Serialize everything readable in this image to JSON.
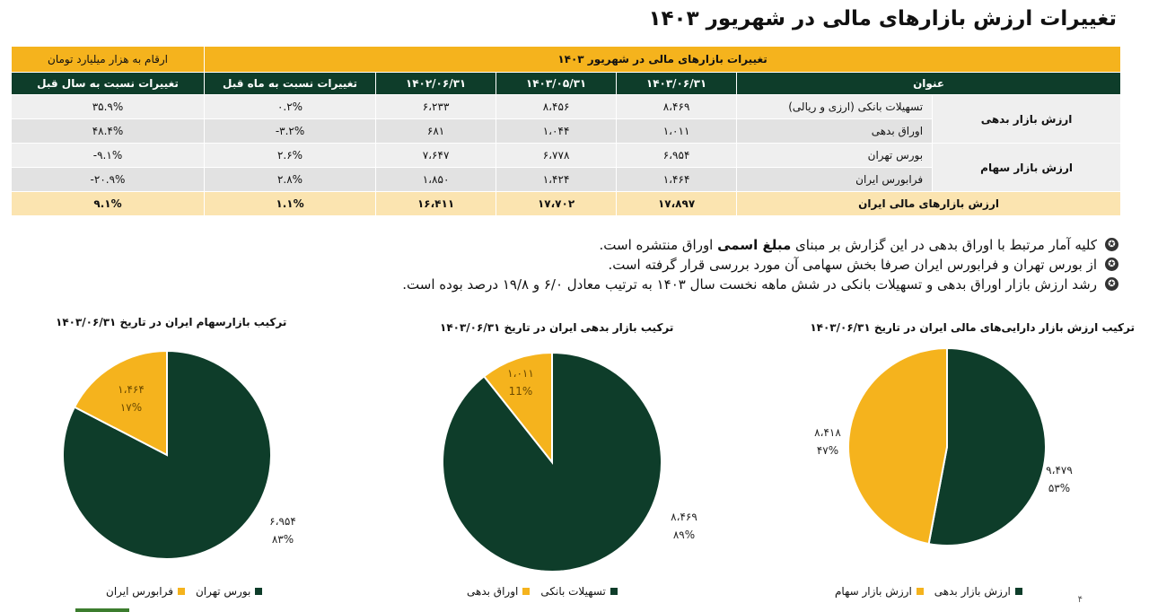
{
  "title": "تغییرات ارزش بازارهای مالی در شهریور ۱۴۰۳",
  "table": {
    "band_title": "تغییرات بازارهای مالی در شهریور ۱۴۰۳",
    "unit_note": "ارقام به هزار میلیارد تومان",
    "headers": [
      "عنوان",
      "۱۴۰۳/۰۶/۳۱",
      "۱۴۰۳/۰۵/۳۱",
      "۱۴۰۲/۰۶/۳۱",
      "تغییرات نسبت به ماه قبل",
      "تغییرات  نسبت به سال قبل"
    ],
    "groups": [
      {
        "label": "ارزش بازار بدهی",
        "rows": [
          {
            "name": "تسهیلات بانکی (ارزی و ریالی)",
            "cells": [
              "۸،۴۶۹",
              "۸،۴۵۶",
              "۶،۲۳۳",
              "۰.۲%",
              "۳۵.۹%"
            ]
          },
          {
            "name": "اوراق بدهی",
            "cells": [
              "۱،۰۱۱",
              "۱،۰۴۴",
              "۶۸۱",
              "-۳.۲%",
              "۴۸.۴%"
            ]
          }
        ]
      },
      {
        "label": "ارزش بازار سهام",
        "rows": [
          {
            "name": "بورس تهران",
            "cells": [
              "۶،۹۵۴",
              "۶،۷۷۸",
              "۷،۶۴۷",
              "۲.۶%",
              "-۹.۱%"
            ]
          },
          {
            "name": "فرابورس ایران",
            "cells": [
              "۱،۴۶۴",
              "۱،۴۲۴",
              "۱،۸۵۰",
              "۲.۸%",
              "-۲۰.۹%"
            ]
          }
        ]
      }
    ],
    "total": {
      "name": "ارزش بازارهای مالی ایران",
      "cells": [
        "۱۷،۸۹۷",
        "۱۷،۷۰۲",
        "۱۶،۴۱۱",
        "۱.۱%",
        "۹.۱%"
      ]
    }
  },
  "bullets": [
    {
      "before": "کلیه آمار مرتبط با اوراق بدهی در این گزارش بر مبنای ",
      "bold": "مبلغ اسمی",
      "after": " اوراق منتشره است."
    },
    {
      "before": "از بورس تهران و فرابورس ایران صرفا بخش سهامی آن مورد بررسی قرار گرفته است.",
      "bold": "",
      "after": ""
    },
    {
      "before": "رشد ارزش بازار اوراق بدهی و تسهیلات بانکی در شش ماهه نخست سال ۱۴۰۳ به ترتیب معادل ۶/۰ و ۱۹/۸ درصد بوده است.",
      "bold": "",
      "after": ""
    }
  ],
  "colors": {
    "dark_green": "#0e3d2a",
    "gold": "#f5b31d"
  },
  "chart_data": [
    {
      "type": "pie",
      "title": "ترکیب ارزش بازار دارایی‌های مالی ایران در تاریخ ۱۴۰۳/۰۶/۳۱",
      "series": [
        {
          "name": "ارزش بازار بدهی",
          "value": 9479,
          "label": "۹،۴۷۹",
          "percent": "۵۳%",
          "color": "#0e3d2a"
        },
        {
          "name": "ارزش بازار سهام",
          "value": 8418,
          "label": "۸،۴۱۸",
          "percent": "۴۷%",
          "color": "#f5b31d"
        }
      ]
    },
    {
      "type": "pie",
      "title": "ترکیب بازار بدهی ایران در تاریخ ۱۴۰۳/۰۶/۳۱",
      "series": [
        {
          "name": "تسهیلات بانکی",
          "value": 8469,
          "label": "۸،۴۶۹",
          "percent": "۸۹%",
          "color": "#0e3d2a"
        },
        {
          "name": "اوراق بدهی",
          "value": 1011,
          "label": "۱،۰۱۱",
          "percent": "11%",
          "color": "#f5b31d"
        }
      ]
    },
    {
      "type": "pie",
      "title": "ترکیب بازارسهام ایران در تاریخ  ۱۴۰۳/۰۶/۳۱",
      "series": [
        {
          "name": "بورس تهران",
          "value": 6954,
          "label": "۶،۹۵۴",
          "percent": "۸۳%",
          "color": "#0e3d2a"
        },
        {
          "name": "فرابورس ایران",
          "value": 1464,
          "label": "۱،۴۶۴",
          "percent": "۱۷%",
          "color": "#f5b31d"
        }
      ]
    }
  ],
  "page_number": "۴"
}
